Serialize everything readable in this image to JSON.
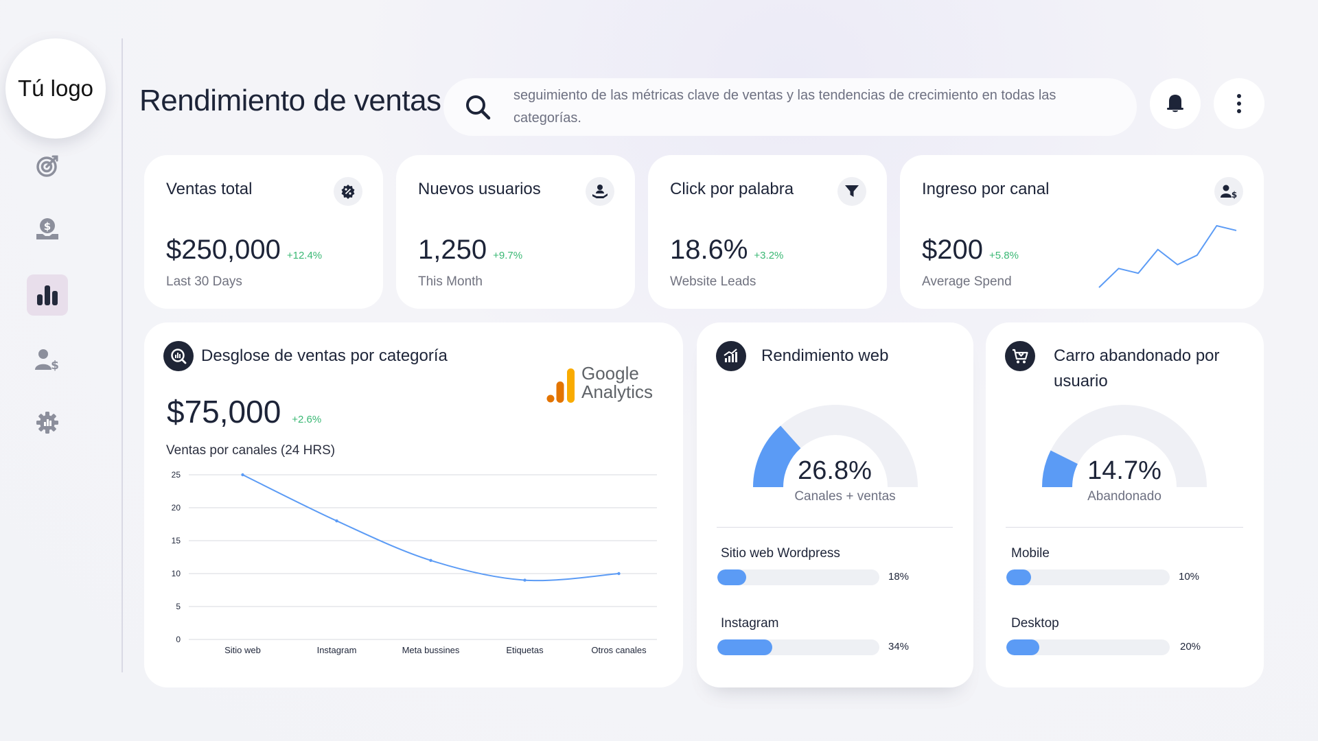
{
  "brand": {
    "logo_text": "Tú logo"
  },
  "sidebar": {
    "items": [
      {
        "icon": "target-icon"
      },
      {
        "icon": "money-hand-icon"
      },
      {
        "icon": "bar-chart-icon",
        "active": true
      },
      {
        "icon": "user-dollar-icon"
      },
      {
        "icon": "gear-icon"
      }
    ]
  },
  "header": {
    "title": "Rendimiento de ventas",
    "search_text": "seguimiento de las métricas clave de ventas y las tendencias de crecimiento en todas las categorías."
  },
  "kpis": [
    {
      "title": "Ventas total",
      "value": "$250,000",
      "change": "+12.4%",
      "sub": "Last 30 Days",
      "icon": "percent-badge-icon"
    },
    {
      "title": "Nuevos usuarios",
      "value": "1,250",
      "change": "+9.7%",
      "sub": "This Month",
      "icon": "user-hand-icon"
    },
    {
      "title": "Click por palabra",
      "value": "18.6%",
      "change": "+3.2%",
      "sub": "Website Leads",
      "icon": "funnel-icon"
    },
    {
      "title": "Ingreso por canal",
      "value": "$200",
      "change": "+5.8%",
      "sub": "Average Spend",
      "icon": "user-dollar-icon"
    }
  ],
  "sparkline": [
    1,
    3,
    2.5,
    5,
    3.4,
    4.4,
    7.5,
    7
  ],
  "breakdown": {
    "title": "Desglose de ventas por categoría",
    "value": "$75,000",
    "change": "+2.6%",
    "subtitle": "Ventas por canales (24 HRS)",
    "brand_logo": [
      "Google",
      "Analytics"
    ]
  },
  "chart_data": {
    "type": "line",
    "title": "Ventas por canales (24 HRS)",
    "categories": [
      "Sitio web",
      "Instagram",
      "Meta bussines",
      "Etiquetas",
      "Otros canales"
    ],
    "series": [
      {
        "values": [
          25,
          18,
          12,
          9,
          10
        ]
      }
    ],
    "ylim": [
      0,
      25
    ],
    "yticks": [
      0,
      5,
      10,
      15,
      20,
      25
    ],
    "grid": true,
    "color": "#5b9bf5"
  },
  "web_perf": {
    "title": "Rendimiento web",
    "gauge_value": "26.8%",
    "gauge_fraction": 0.268,
    "gauge_label": "Canales + ventas",
    "bars": [
      {
        "label": "Sitio web Wordpress",
        "pct": "18%",
        "fraction": 0.18
      },
      {
        "label": "Instagram",
        "pct": "34%",
        "fraction": 0.34
      }
    ]
  },
  "cart": {
    "title": "Carro abandonado por usuario",
    "gauge_value": "14.7%",
    "gauge_fraction": 0.147,
    "gauge_label": "Abandonado",
    "bars": [
      {
        "label": "Mobile",
        "pct": "10%",
        "fraction": 0.1
      },
      {
        "label": "Desktop",
        "pct": "20%",
        "fraction": 0.2
      }
    ]
  },
  "colors": {
    "accent": "#5b9bf5",
    "positive": "#3ab874",
    "dark": "#1f2536",
    "active_nav": "#e8deeb"
  }
}
